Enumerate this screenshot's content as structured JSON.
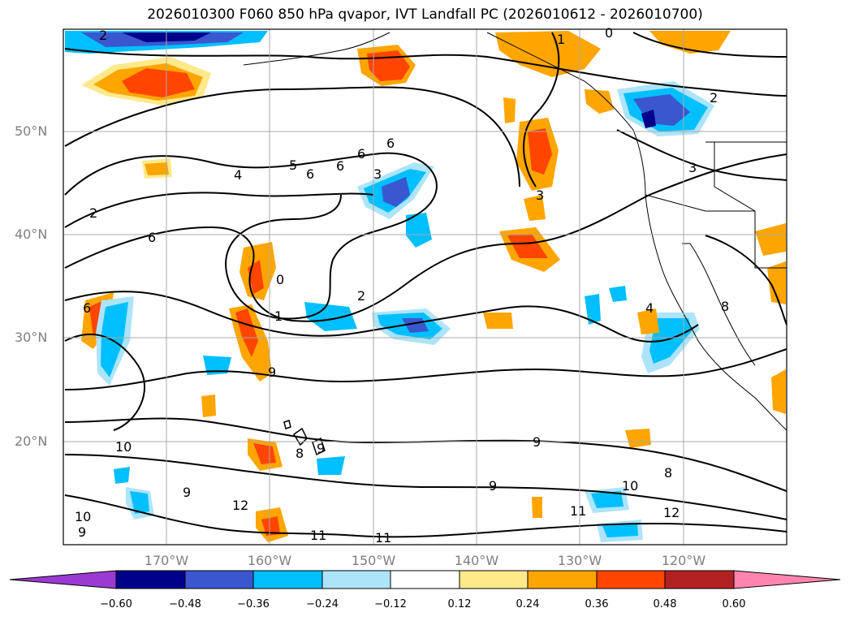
{
  "title": "2026010300 F060 850 hPa qvapor, IVT Landfall PC (2026010612 - 2026010700)",
  "lat_labels": [
    "50°N",
    "40°N",
    "30°N",
    "20°N"
  ],
  "lon_labels": [
    "170°W",
    "160°W",
    "150°W",
    "140°W",
    "130°W",
    "120°W"
  ],
  "colorbar": {
    "ticks": [
      "−0.60",
      "−0.48",
      "−0.36",
      "−0.24",
      "−0.12",
      "0.12",
      "0.24",
      "0.36",
      "0.48",
      "0.60"
    ],
    "colors": [
      "#9a3ad3",
      "#00008b",
      "#3a57d0",
      "#00bfff",
      "#ade4fa",
      "#ffffff",
      "#ffe98a",
      "#ffa500",
      "#ff4500",
      "#b22222",
      "#ff85b0"
    ]
  },
  "contour_labels": [
    "2",
    "1",
    "0",
    "2",
    "4",
    "5",
    "6",
    "6",
    "6",
    "6",
    "3",
    "2",
    "6",
    "3",
    "3",
    "1",
    "2",
    "6",
    "0",
    "9",
    "10",
    "9",
    "8",
    "9",
    "10",
    "9",
    "12",
    "11",
    "11",
    "9",
    "10",
    "8",
    "11",
    "12",
    "4",
    "8",
    "9"
  ],
  "colors": {
    "grid": "#a9a9a9",
    "contour": "#000000",
    "axis_tick": "#7f7f7f"
  }
}
